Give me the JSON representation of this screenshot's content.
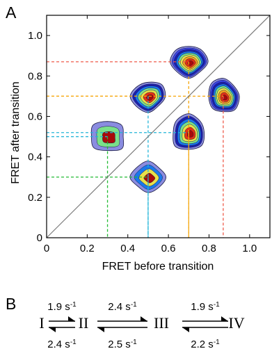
{
  "panel_a_label": "A",
  "panel_b_label": "B",
  "chart_data": {
    "type": "contour",
    "xlabel": "FRET before transition",
    "ylabel": "FRET after transition",
    "xlim": [
      0,
      1.1
    ],
    "ylim": [
      0,
      1.1
    ],
    "xticks": [
      0,
      0.2,
      0.4,
      0.6,
      0.8,
      1
    ],
    "yticks": [
      0,
      0.2,
      0.4,
      0.6,
      0.8,
      1
    ],
    "x_tick_labels": [
      "0",
      "0.2",
      "0.4",
      "0.6",
      "0.8",
      "1.0"
    ],
    "y_tick_labels": [
      "0",
      "0.2",
      "0.4",
      "0.6",
      "0.8",
      "1.0"
    ],
    "diagonal": true,
    "peaks": [
      {
        "x": 0.3,
        "y": 0.5,
        "levels": 3,
        "spread": [
          0.09,
          0.075
        ]
      },
      {
        "x": 0.5,
        "y": 0.3,
        "levels": 4,
        "spread": [
          0.08,
          0.075
        ]
      },
      {
        "x": 0.5,
        "y": 0.7,
        "levels": 7,
        "spread": [
          0.085,
          0.075
        ]
      },
      {
        "x": 0.7,
        "y": 0.52,
        "levels": 7,
        "spread": [
          0.085,
          0.085
        ]
      },
      {
        "x": 0.7,
        "y": 0.87,
        "levels": 9,
        "spread": [
          0.085,
          0.08
        ]
      },
      {
        "x": 0.87,
        "y": 0.7,
        "levels": 9,
        "spread": [
          0.075,
          0.085
        ]
      }
    ],
    "guide_lines": [
      {
        "value": 0.3,
        "color": "#22bb33"
      },
      {
        "value": 0.5,
        "color": "#22b5d8"
      },
      {
        "value": 0.7,
        "color": "#f5a60a"
      },
      {
        "value": 0.87,
        "color": "#ef5a4a"
      }
    ]
  },
  "scheme": {
    "states": [
      "I",
      "II",
      "III",
      "IV"
    ],
    "forward_rates": [
      "1.9 s",
      "2.4 s",
      "1.9 s"
    ],
    "backward_rates": [
      "2.4 s",
      "2.5 s",
      "2.2 s"
    ],
    "rate_exponent": "-1"
  }
}
